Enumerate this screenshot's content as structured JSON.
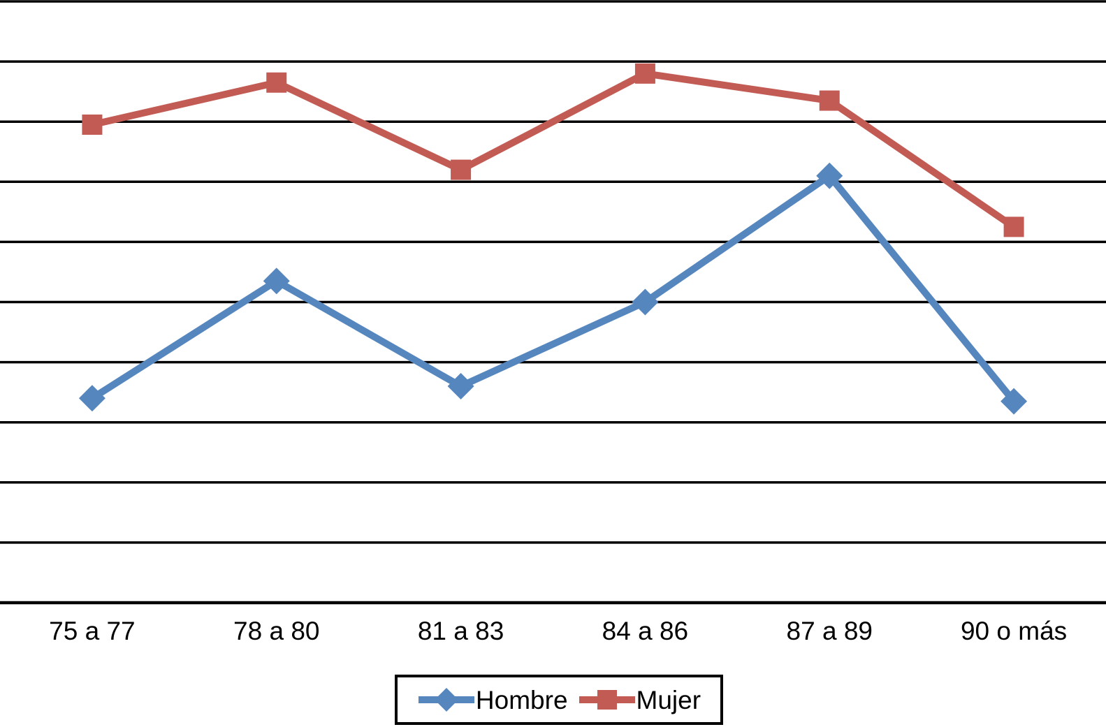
{
  "chart_data": {
    "type": "line",
    "title": "",
    "xlabel": "",
    "ylabel": "",
    "categories": [
      "75 a 77",
      "78 a 80",
      "81 a 83",
      "84 a 86",
      "87 a 89",
      "90 o más"
    ],
    "series": [
      {
        "name": "Hombre",
        "marker": "diamond",
        "color": "#5686BE",
        "values": [
          3.4,
          5.35,
          3.6,
          5.0,
          7.1,
          3.35
        ]
      },
      {
        "name": "Mujer",
        "marker": "square",
        "color": "#C35B55",
        "values": [
          7.95,
          8.65,
          7.2,
          8.8,
          8.35,
          6.25
        ]
      }
    ],
    "ylim": [
      0,
      10
    ],
    "y_axis_labels_visible": false,
    "gridlines": {
      "visible": true,
      "count": 11,
      "color": "#000000"
    },
    "legend_position": "bottom"
  },
  "colors": {
    "background": "#FFFFFF",
    "grid": "#000000",
    "text": "#000000"
  }
}
